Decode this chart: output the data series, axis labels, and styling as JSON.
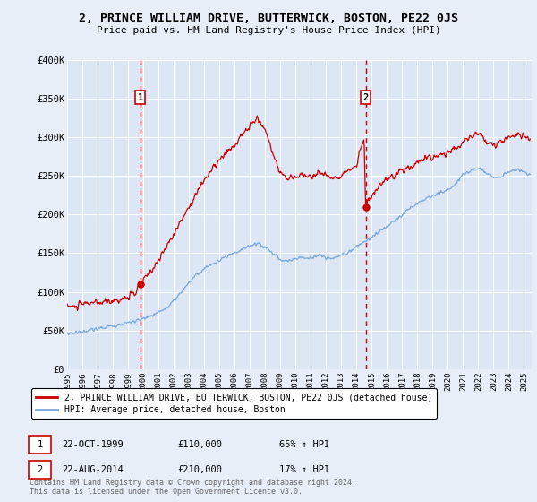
{
  "title": "2, PRINCE WILLIAM DRIVE, BUTTERWICK, BOSTON, PE22 0JS",
  "subtitle": "Price paid vs. HM Land Registry's House Price Index (HPI)",
  "bg_color": "#e8eef7",
  "plot_bg_color": "#dce6f5",
  "grid_color": "#ffffff",
  "red_line_color": "#cc0000",
  "blue_line_color": "#7aaadd",
  "vline_color": "#cc0000",
  "ylim": [
    0,
    400000
  ],
  "yticks": [
    0,
    50000,
    100000,
    150000,
    200000,
    250000,
    300000,
    350000,
    400000
  ],
  "ytick_labels": [
    "£0",
    "£50K",
    "£100K",
    "£150K",
    "£200K",
    "£250K",
    "£300K",
    "£350K",
    "£400K"
  ],
  "legend_label_red": "2, PRINCE WILLIAM DRIVE, BUTTERWICK, BOSTON, PE22 0JS (detached house)",
  "legend_label_blue": "HPI: Average price, detached house, Boston",
  "sale1_date": "22-OCT-1999",
  "sale1_price": "£110,000",
  "sale1_hpi": "65% ↑ HPI",
  "sale2_date": "22-AUG-2014",
  "sale2_price": "£210,000",
  "sale2_hpi": "17% ↑ HPI",
  "footnote": "Contains HM Land Registry data © Crown copyright and database right 2024.\nThis data is licensed under the Open Government Licence v3.0.",
  "sale1_year": 1999.8,
  "sale2_year": 2014.6,
  "sale1_price_val": 110000,
  "sale2_price_val": 210000,
  "xmin": 1995.0,
  "xmax": 2025.5,
  "xticks": [
    1995,
    1996,
    1997,
    1998,
    1999,
    2000,
    2001,
    2002,
    2003,
    2004,
    2005,
    2006,
    2007,
    2008,
    2009,
    2010,
    2011,
    2012,
    2013,
    2014,
    2015,
    2016,
    2017,
    2018,
    2019,
    2020,
    2021,
    2022,
    2023,
    2024,
    2025
  ],
  "red_waypoints": [
    [
      1995.0,
      82000
    ],
    [
      1995.5,
      80000
    ],
    [
      1996.0,
      84000
    ],
    [
      1996.5,
      86000
    ],
    [
      1997.0,
      85000
    ],
    [
      1997.5,
      87000
    ],
    [
      1998.0,
      88000
    ],
    [
      1998.5,
      90000
    ],
    [
      1999.0,
      93000
    ],
    [
      1999.5,
      98000
    ],
    [
      1999.8,
      110000
    ],
    [
      2000.0,
      115000
    ],
    [
      2001.0,
      140000
    ],
    [
      2002.0,
      175000
    ],
    [
      2003.0,
      210000
    ],
    [
      2004.0,
      245000
    ],
    [
      2005.0,
      270000
    ],
    [
      2006.0,
      290000
    ],
    [
      2007.0,
      315000
    ],
    [
      2007.5,
      325000
    ],
    [
      2008.0,
      310000
    ],
    [
      2008.5,
      280000
    ],
    [
      2009.0,
      255000
    ],
    [
      2009.5,
      245000
    ],
    [
      2010.0,
      250000
    ],
    [
      2010.5,
      252000
    ],
    [
      2011.0,
      248000
    ],
    [
      2011.5,
      255000
    ],
    [
      2012.0,
      250000
    ],
    [
      2012.5,
      248000
    ],
    [
      2013.0,
      252000
    ],
    [
      2013.5,
      256000
    ],
    [
      2014.0,
      265000
    ],
    [
      2014.5,
      300000
    ],
    [
      2014.6,
      210000
    ],
    [
      2015.0,
      225000
    ],
    [
      2015.5,
      235000
    ],
    [
      2016.0,
      245000
    ],
    [
      2016.5,
      250000
    ],
    [
      2017.0,
      258000
    ],
    [
      2017.5,
      262000
    ],
    [
      2018.0,
      268000
    ],
    [
      2018.5,
      272000
    ],
    [
      2019.0,
      275000
    ],
    [
      2019.5,
      278000
    ],
    [
      2020.0,
      280000
    ],
    [
      2020.5,
      285000
    ],
    [
      2021.0,
      295000
    ],
    [
      2021.5,
      302000
    ],
    [
      2022.0,
      305000
    ],
    [
      2022.5,
      298000
    ],
    [
      2023.0,
      290000
    ],
    [
      2023.5,
      295000
    ],
    [
      2024.0,
      300000
    ],
    [
      2024.5,
      305000
    ],
    [
      2025.0,
      302000
    ],
    [
      2025.4,
      298000
    ]
  ],
  "blue_waypoints": [
    [
      1995.0,
      46000
    ],
    [
      1995.5,
      47000
    ],
    [
      1996.0,
      48500
    ],
    [
      1996.5,
      50000
    ],
    [
      1997.0,
      52000
    ],
    [
      1997.5,
      54000
    ],
    [
      1998.0,
      56000
    ],
    [
      1998.5,
      58000
    ],
    [
      1999.0,
      60000
    ],
    [
      1999.5,
      62000
    ],
    [
      2000.0,
      65000
    ],
    [
      2000.5,
      68000
    ],
    [
      2001.0,
      73000
    ],
    [
      2001.5,
      79000
    ],
    [
      2002.0,
      88000
    ],
    [
      2002.5,
      100000
    ],
    [
      2003.0,
      112000
    ],
    [
      2003.5,
      122000
    ],
    [
      2004.0,
      130000
    ],
    [
      2004.5,
      136000
    ],
    [
      2005.0,
      140000
    ],
    [
      2005.5,
      145000
    ],
    [
      2006.0,
      150000
    ],
    [
      2006.5,
      155000
    ],
    [
      2007.0,
      160000
    ],
    [
      2007.5,
      163000
    ],
    [
      2008.0,
      158000
    ],
    [
      2008.5,
      150000
    ],
    [
      2009.0,
      142000
    ],
    [
      2009.5,
      140000
    ],
    [
      2010.0,
      143000
    ],
    [
      2010.5,
      145000
    ],
    [
      2011.0,
      143000
    ],
    [
      2011.5,
      148000
    ],
    [
      2012.0,
      144000
    ],
    [
      2012.5,
      143000
    ],
    [
      2013.0,
      148000
    ],
    [
      2013.5,
      152000
    ],
    [
      2014.0,
      158000
    ],
    [
      2014.5,
      165000
    ],
    [
      2014.6,
      165000
    ],
    [
      2015.0,
      170000
    ],
    [
      2015.5,
      178000
    ],
    [
      2016.0,
      185000
    ],
    [
      2016.5,
      192000
    ],
    [
      2017.0,
      200000
    ],
    [
      2017.5,
      208000
    ],
    [
      2018.0,
      215000
    ],
    [
      2018.5,
      220000
    ],
    [
      2019.0,
      225000
    ],
    [
      2019.5,
      228000
    ],
    [
      2020.0,
      232000
    ],
    [
      2020.5,
      240000
    ],
    [
      2021.0,
      252000
    ],
    [
      2021.5,
      258000
    ],
    [
      2022.0,
      260000
    ],
    [
      2022.5,
      255000
    ],
    [
      2023.0,
      248000
    ],
    [
      2023.5,
      250000
    ],
    [
      2024.0,
      255000
    ],
    [
      2024.5,
      258000
    ],
    [
      2025.0,
      255000
    ],
    [
      2025.4,
      252000
    ]
  ]
}
